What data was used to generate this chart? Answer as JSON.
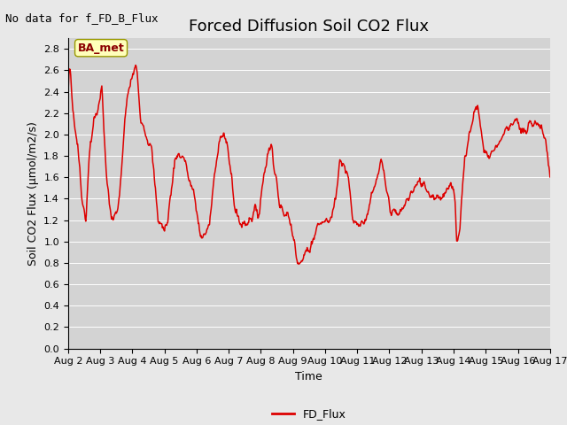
{
  "title": "Forced Diffusion Soil CO2 Flux",
  "no_data_label": "No data for f_FD_B_Flux",
  "ylabel": "Soil CO2 Flux (μmol/m2/s)",
  "xlabel": "Time",
  "legend_label": "FD_Flux",
  "line_color": "#dd0000",
  "legend_line_color": "#dd0000",
  "bg_color": "#e8e8e8",
  "plot_bg_color": "#d3d3d3",
  "ylim": [
    0.0,
    2.9
  ],
  "yticks": [
    0.0,
    0.2,
    0.4,
    0.6,
    0.8,
    1.0,
    1.2,
    1.4,
    1.6,
    1.8,
    2.0,
    2.2,
    2.4,
    2.6,
    2.8
  ],
  "annotation_text": "BA_met",
  "start_day": 2,
  "end_day": 17,
  "xtick_positions": [
    2,
    3,
    4,
    5,
    6,
    7,
    8,
    9,
    10,
    11,
    12,
    13,
    14,
    15,
    16,
    17
  ],
  "xtick_labels": [
    "Aug 2",
    "Aug 3",
    "Aug 4",
    "Aug 5",
    "Aug 6",
    "Aug 7",
    "Aug 8",
    "Aug 9",
    "Aug 10",
    "Aug 11",
    "Aug 12",
    "Aug 13",
    "Aug 14",
    "Aug 15",
    "Aug 16",
    "Aug 17"
  ],
  "grid_color": "#ffffff",
  "title_fontsize": 13,
  "axis_label_fontsize": 9,
  "tick_fontsize": 8,
  "line_width": 1.1,
  "no_data_fontsize": 9,
  "annotation_fontsize": 9,
  "legend_fontsize": 9
}
